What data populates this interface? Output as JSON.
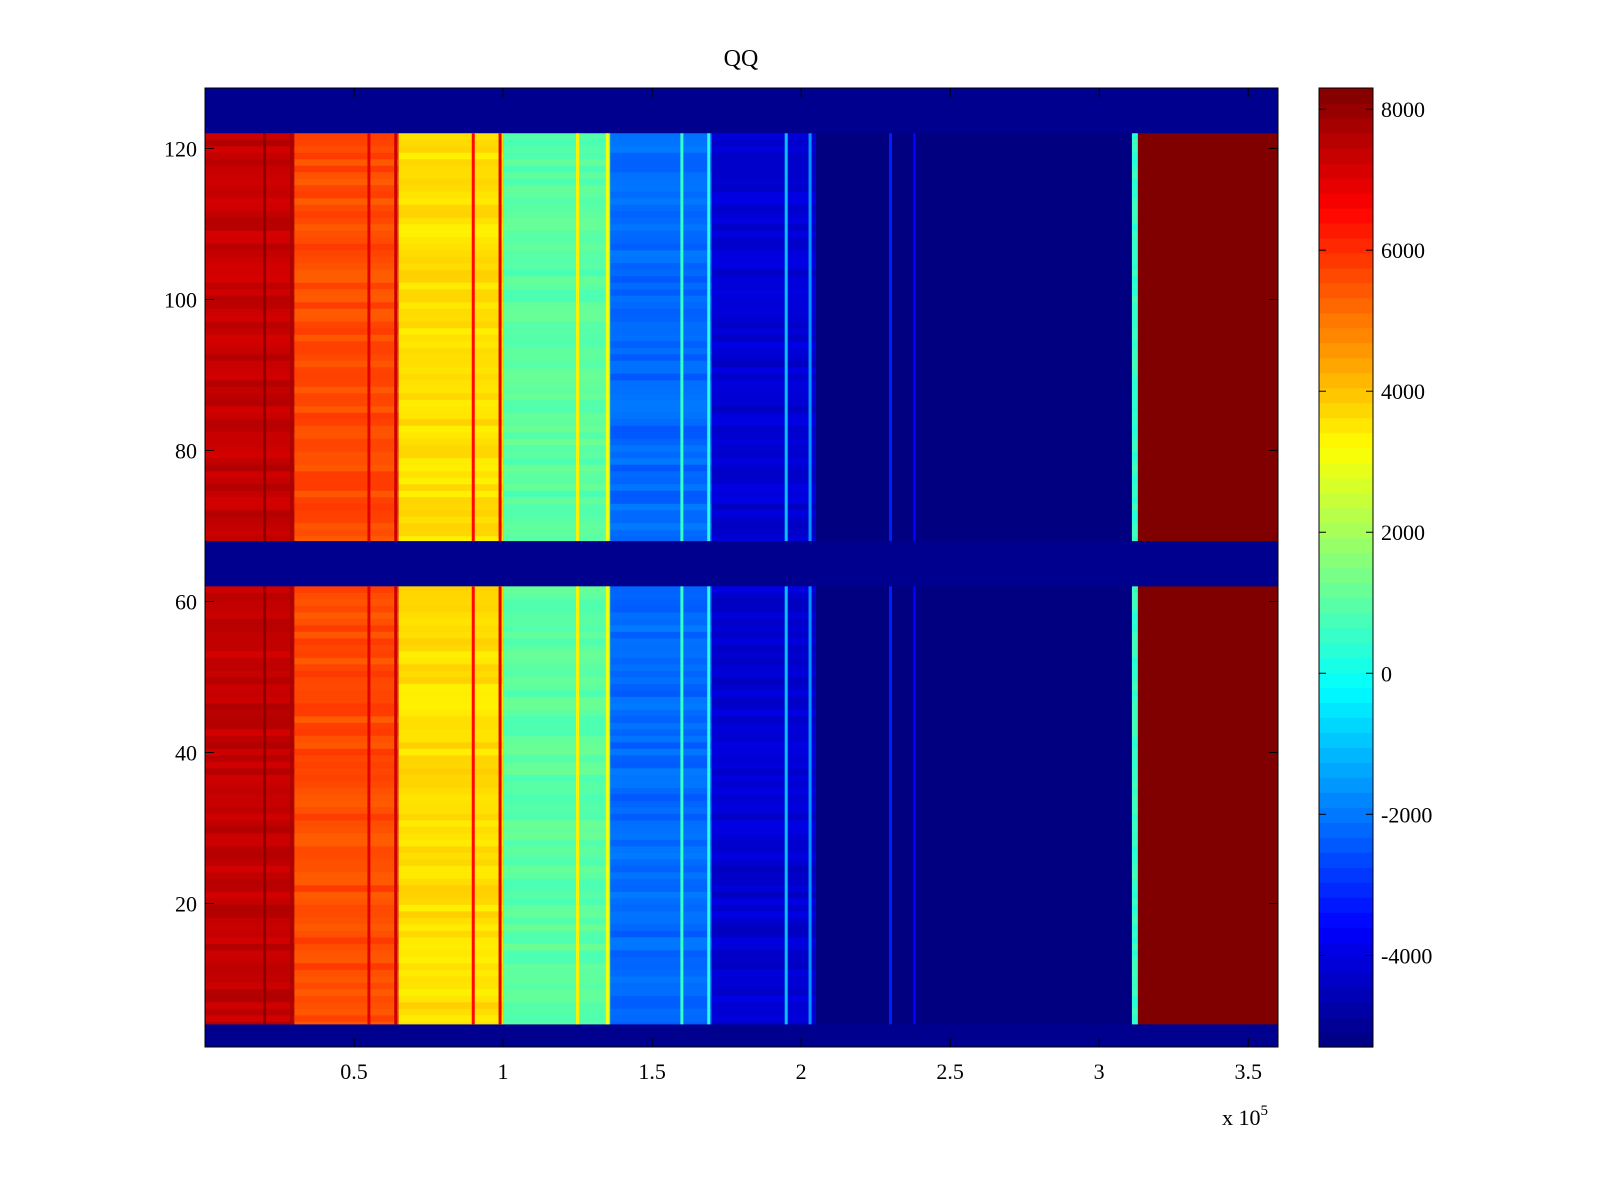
{
  "chart_data": {
    "type": "heatmap",
    "title": "QQ",
    "xlabel": "",
    "ylabel": "",
    "x_exponent_label": {
      "base": "x 10",
      "exponent": "5"
    },
    "xlim": [
      0,
      3.6
    ],
    "ylim": [
      1,
      128
    ],
    "x_ticks": [
      0.5,
      1,
      1.5,
      2,
      2.5,
      3,
      3.5
    ],
    "x_tick_labels": [
      "0.5",
      "1",
      "1.5",
      "2",
      "2.5",
      "3",
      "3.5"
    ],
    "y_ticks": [
      20,
      40,
      60,
      80,
      100,
      120
    ],
    "y_tick_labels": [
      "20",
      "40",
      "60",
      "80",
      "100",
      "120"
    ],
    "colorbar": {
      "range": [
        -5300,
        8300
      ],
      "ticks": [
        -4000,
        -2000,
        0,
        2000,
        4000,
        6000,
        8000
      ],
      "tick_labels": [
        "-4000",
        "-2000",
        "0",
        "2000",
        "4000",
        "6000",
        "8000"
      ],
      "colormap": "jet"
    },
    "background_value": -5300,
    "row_blocks": [
      {
        "y0": 4,
        "y1": 62
      },
      {
        "y0": 68,
        "y1": 122
      }
    ],
    "column_bands": [
      {
        "x0": 0.0,
        "x1": 0.3,
        "value": 7400
      },
      {
        "x0": 0.3,
        "x1": 0.65,
        "value": 5600
      },
      {
        "x0": 0.65,
        "x1": 1.0,
        "value": 3600
      },
      {
        "x0": 1.0,
        "x1": 1.36,
        "value": 1000
      },
      {
        "x0": 1.36,
        "x1": 1.7,
        "value": -2200
      },
      {
        "x0": 1.7,
        "x1": 2.05,
        "value": -4200
      },
      {
        "x0": 2.05,
        "x1": 3.11,
        "value": -5300
      },
      {
        "x0": 3.11,
        "x1": 3.13,
        "value": 500
      },
      {
        "x0": 3.13,
        "x1": 3.61,
        "value": 8300
      }
    ],
    "stripe_lines": [
      {
        "x": 0.2,
        "value": 8100
      },
      {
        "x": 0.29,
        "value": 7700
      },
      {
        "x": 0.55,
        "value": 7000
      },
      {
        "x": 0.64,
        "value": 7300
      },
      {
        "x": 0.9,
        "value": 6500
      },
      {
        "x": 0.99,
        "value": 6900
      },
      {
        "x": 1.25,
        "value": 3400
      },
      {
        "x": 1.35,
        "value": 3100
      },
      {
        "x": 1.6,
        "value": 500
      },
      {
        "x": 1.69,
        "value": 300
      },
      {
        "x": 1.95,
        "value": -1000
      },
      {
        "x": 2.03,
        "value": -1600
      },
      {
        "x": 2.3,
        "value": -3200
      },
      {
        "x": 2.38,
        "value": -3600
      }
    ]
  }
}
